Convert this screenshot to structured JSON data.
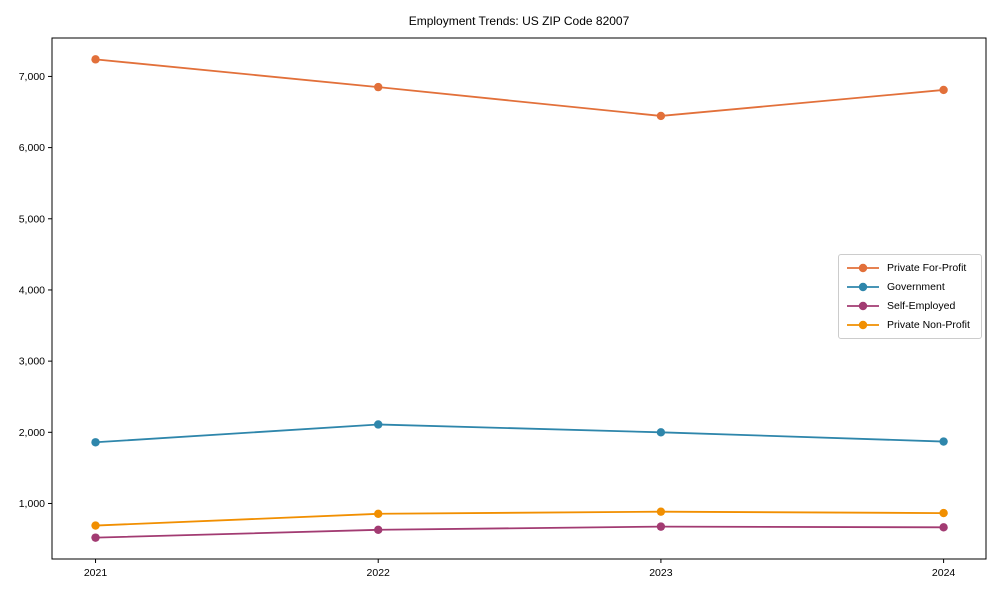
{
  "chart_data": {
    "type": "line",
    "title": "Employment Trends: US ZIP Code 82007",
    "xlabel": "",
    "ylabel": "",
    "x": [
      2021,
      2022,
      2023,
      2024
    ],
    "x_tick_labels": [
      "2021",
      "2022",
      "2023",
      "2024"
    ],
    "y_tick_values": [
      1000,
      2000,
      3000,
      4000,
      5000,
      6000,
      7000
    ],
    "y_tick_labels": [
      "1,000",
      "2,000",
      "3,000",
      "4,000",
      "5,000",
      "6,000",
      "7,000"
    ],
    "xlim": [
      2020.846,
      2024.15
    ],
    "ylim": [
      220,
      7540
    ],
    "grid": false,
    "legend_position": "center-right",
    "series": [
      {
        "name": "Private For-Profit",
        "color": "#E2703A",
        "values": [
          7240,
          6850,
          6445,
          6810
        ]
      },
      {
        "name": "Government",
        "color": "#2E86AB",
        "values": [
          1860,
          2110,
          2000,
          1870
        ]
      },
      {
        "name": "Self-Employed",
        "color": "#A23B72",
        "values": [
          520,
          630,
          675,
          665
        ]
      },
      {
        "name": "Private Non-Profit",
        "color": "#F18F01",
        "values": [
          690,
          855,
          885,
          865
        ]
      }
    ]
  }
}
